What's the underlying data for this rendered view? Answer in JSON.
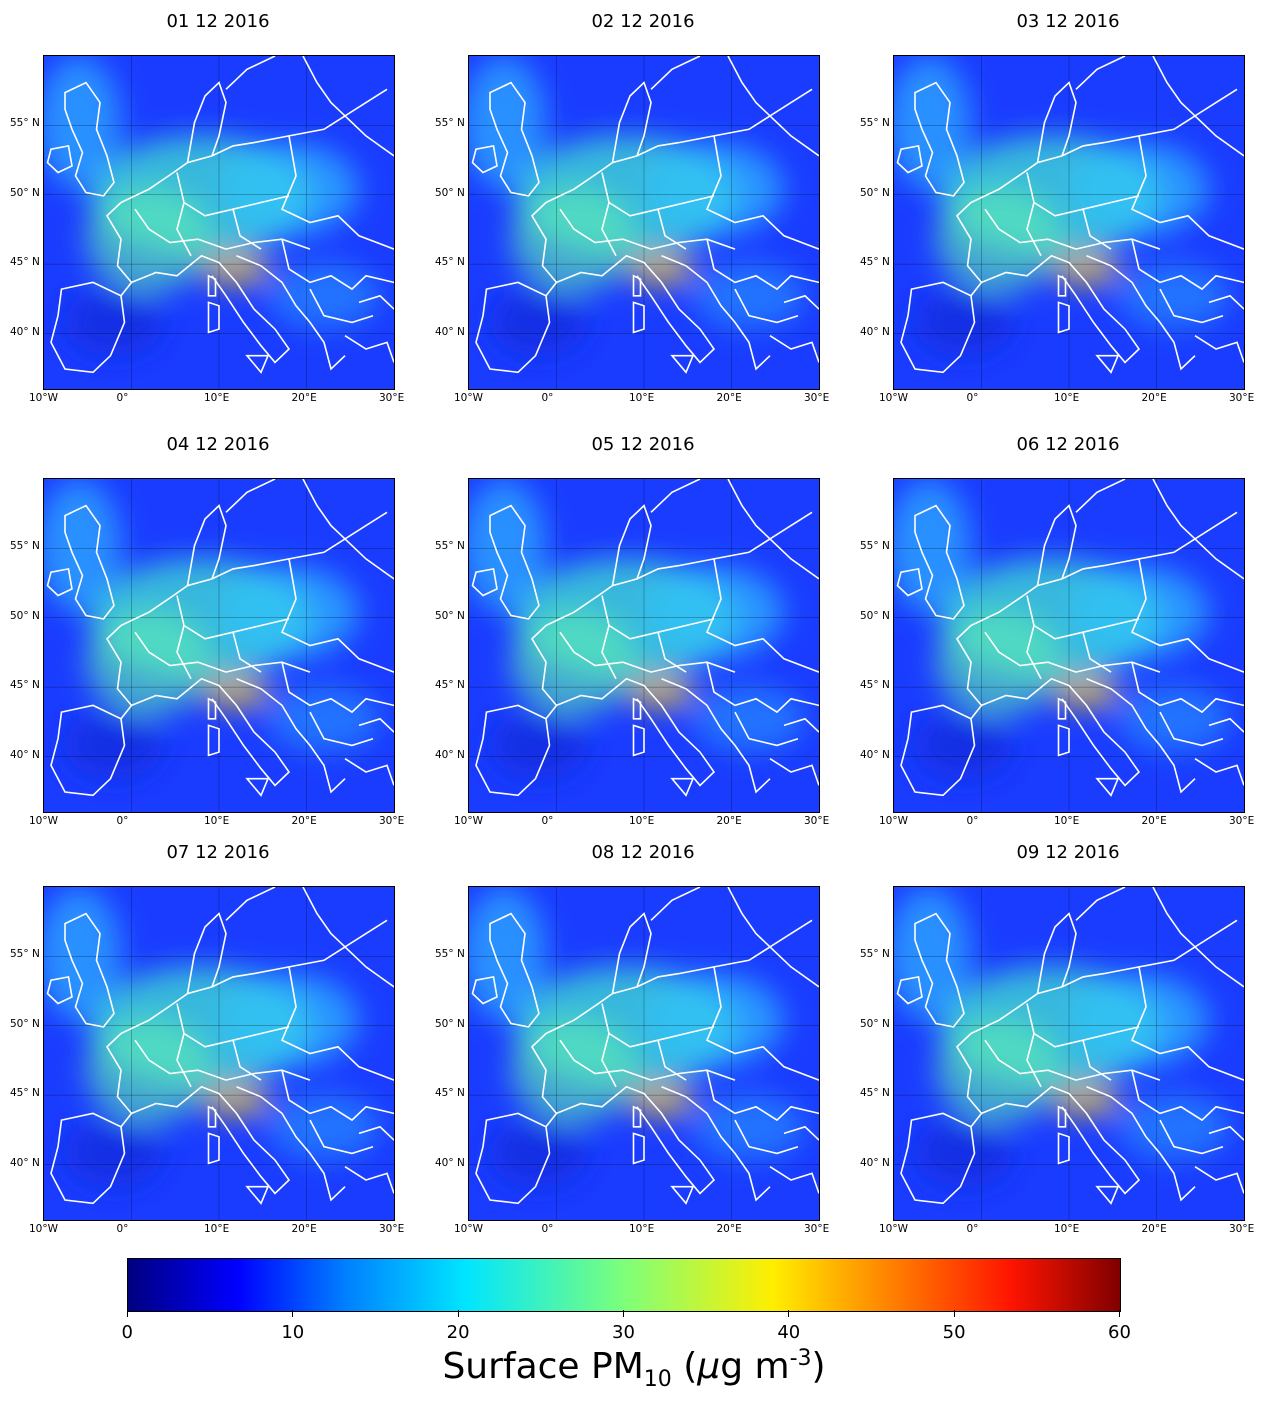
{
  "panels": [
    {
      "title": "01 12 2016"
    },
    {
      "title": "02 12 2016"
    },
    {
      "title": "03 12 2016"
    },
    {
      "title": "04 12 2016"
    },
    {
      "title": "05 12 2016"
    },
    {
      "title": "06 12 2016"
    },
    {
      "title": "07 12 2016"
    },
    {
      "title": "08 12 2016"
    },
    {
      "title": "09 12 2016"
    }
  ],
  "axes": {
    "lat_labels": [
      "55° N",
      "50° N",
      "45° N",
      "40° N"
    ],
    "lon_labels": [
      "10°W",
      "0°",
      "10°E",
      "20°E",
      "30°E"
    ],
    "lat_range": [
      36,
      60
    ],
    "lon_range": [
      -10,
      30
    ]
  },
  "colorbar": {
    "ticks": [
      "0",
      "10",
      "20",
      "30",
      "40",
      "50",
      "60"
    ],
    "range": [
      0,
      60
    ],
    "label_text": "Surface PM",
    "label_sub": "10",
    "label_unit_pre": " (",
    "label_mu": "μ",
    "label_unit_mid": "g m",
    "label_sup": "-3",
    "label_unit_post": ")",
    "colormap": "jet"
  },
  "colors": {
    "coastline": "#ffffff",
    "background_sea": "#1a3cff"
  }
}
